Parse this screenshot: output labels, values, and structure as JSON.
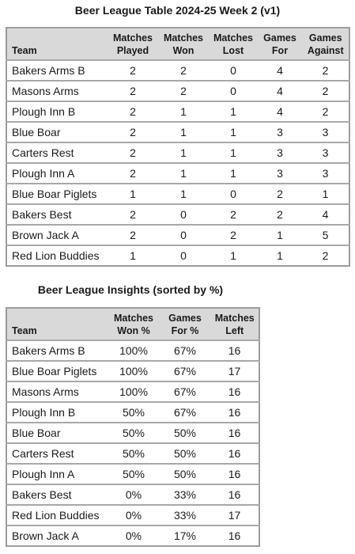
{
  "league_table": {
    "title": "Beer League Table 2024-25 Week 2 (v1)",
    "headers": [
      [
        "Team"
      ],
      [
        "Matches",
        "Played"
      ],
      [
        "Matches",
        "Won"
      ],
      [
        "Matches",
        "Lost"
      ],
      [
        "Games",
        "For"
      ],
      [
        "Games",
        "Against"
      ]
    ],
    "rows": [
      [
        "Bakers Arms B",
        "2",
        "2",
        "0",
        "4",
        "2"
      ],
      [
        "Masons Arms",
        "2",
        "2",
        "0",
        "4",
        "2"
      ],
      [
        "Plough Inn B",
        "2",
        "1",
        "1",
        "4",
        "2"
      ],
      [
        "Blue Boar",
        "2",
        "1",
        "1",
        "3",
        "3"
      ],
      [
        "Carters Rest",
        "2",
        "1",
        "1",
        "3",
        "3"
      ],
      [
        "Plough Inn A",
        "2",
        "1",
        "1",
        "3",
        "3"
      ],
      [
        "Blue Boar Piglets",
        "1",
        "1",
        "0",
        "2",
        "1"
      ],
      [
        "Bakers Best",
        "2",
        "0",
        "2",
        "2",
        "4"
      ],
      [
        "Brown Jack A",
        "2",
        "0",
        "2",
        "1",
        "5"
      ],
      [
        "Red Lion Buddies",
        "1",
        "0",
        "1",
        "1",
        "2"
      ]
    ]
  },
  "insights_table": {
    "title": "Beer League Insights (sorted by %)",
    "headers": [
      [
        "Team"
      ],
      [
        "Matches",
        "Won %"
      ],
      [
        "Games",
        "For %"
      ],
      [
        "Matches",
        "Left"
      ]
    ],
    "rows": [
      [
        "Bakers Arms B",
        "100%",
        "67%",
        "16"
      ],
      [
        "Blue Boar Piglets",
        "100%",
        "67%",
        "17"
      ],
      [
        "Masons Arms",
        "100%",
        "67%",
        "16"
      ],
      [
        "Plough Inn B",
        "50%",
        "67%",
        "16"
      ],
      [
        "Blue Boar",
        "50%",
        "50%",
        "16"
      ],
      [
        "Carters Rest",
        "50%",
        "50%",
        "16"
      ],
      [
        "Plough Inn A",
        "50%",
        "50%",
        "16"
      ],
      [
        "Bakers Best",
        "0%",
        "33%",
        "16"
      ],
      [
        "Red Lion Buddies",
        "0%",
        "33%",
        "17"
      ],
      [
        "Brown Jack A",
        "0%",
        "17%",
        "16"
      ]
    ]
  }
}
